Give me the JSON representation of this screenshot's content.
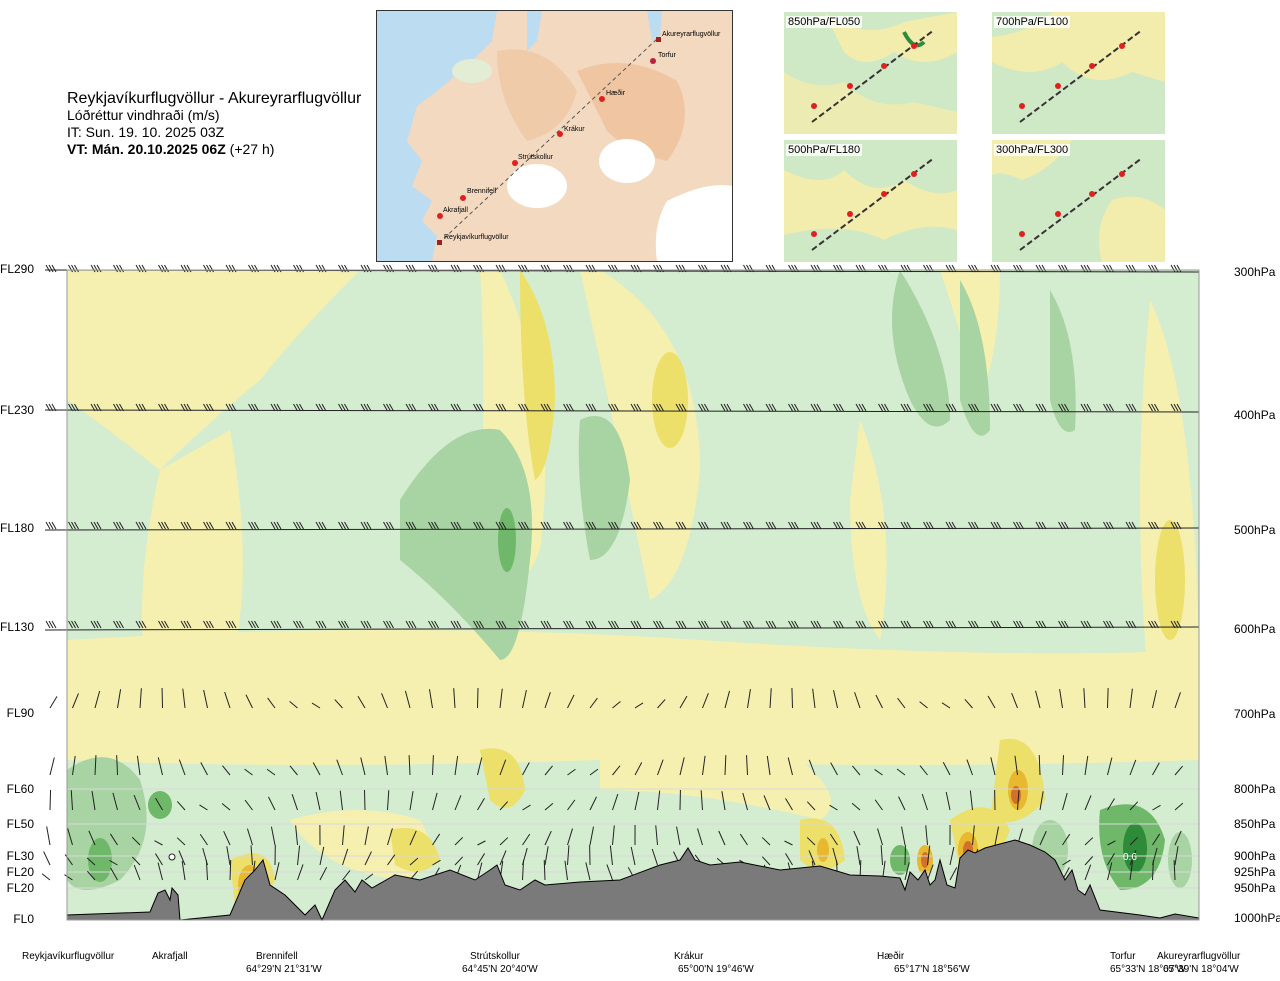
{
  "header": {
    "route": "Reykjavíkurflugvöllur - Akureyrarflugvöllur",
    "variable": "Lóðréttur vindhraði (m/s)",
    "initial_time": "IT: Sun. 19. 10. 2025 03Z",
    "valid_prefix": "VT: Mán. 20.10.2025 06Z",
    "valid_suffix": "(+27 h)"
  },
  "map": {
    "waypoints": [
      "Akureyrarflugvöllur",
      "Torfur",
      "Hæðir",
      "Krákur",
      "Strútskollur",
      "Brennifell",
      "Akrafjall",
      "Reykjavíkurflugvöllur"
    ]
  },
  "insets": [
    {
      "label": "850hPa/FL050"
    },
    {
      "label": "700hPa/FL100"
    },
    {
      "label": "500hPa/FL180"
    },
    {
      "label": "300hPa/FL300"
    }
  ],
  "flight_levels": [
    "FL290",
    "FL230",
    "FL180",
    "FL130",
    "FL90",
    "FL60",
    "FL50",
    "FL30",
    "FL20",
    "FL20",
    "FL0"
  ],
  "pressure_levels": [
    "300hPa",
    "400hPa",
    "500hPa",
    "600hPa",
    "700hPa",
    "800hPa",
    "850hPa",
    "900hPa",
    "925hPa",
    "950hPa",
    "1000hPa"
  ],
  "route_points": [
    {
      "name": "Reykjavíkurflugvöllur",
      "coord": ""
    },
    {
      "name": "Akrafjall",
      "coord": ""
    },
    {
      "name": "Brennifell",
      "coord": "64°29'N 21°31'W"
    },
    {
      "name": "Strútskollur",
      "coord": "64°45'N 20°40'W"
    },
    {
      "name": "Krákur",
      "coord": "65°00'N 19°46'W"
    },
    {
      "name": "Hæðir",
      "coord": "65°17'N 18°56'W"
    },
    {
      "name": "Torfur",
      "coord": "65°33'N 18°07'W"
    },
    {
      "name": "Akureyrarflugvöllur",
      "coord": "65°39'N 18°04'W"
    }
  ],
  "annotation": {
    "value": "0.6"
  },
  "colors": {
    "up_light": "#d4ecd0",
    "up_mid": "#a8d3a2",
    "up_strong": "#6fb86a",
    "up_max": "#2e8b3a",
    "down_light": "#f5f0b0",
    "down_mid": "#ece06a",
    "down_strong": "#e8b830",
    "down_max": "#d2722a",
    "terrain": "#7a7a7a",
    "neutral": "#ffffff",
    "sea": "#bcdcf2",
    "land": "#f3d2b4"
  }
}
